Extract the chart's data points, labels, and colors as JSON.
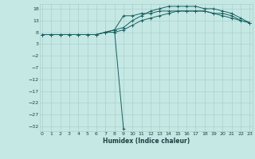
{
  "xlabel": "Humidex (Indice chaleur)",
  "background_color": "#c5e8e5",
  "grid_color": "#aad0cc",
  "line_color": "#1a6060",
  "x_ticks": [
    0,
    1,
    2,
    3,
    4,
    5,
    6,
    7,
    8,
    9,
    10,
    11,
    12,
    13,
    14,
    15,
    16,
    17,
    18,
    19,
    20,
    21,
    22,
    23
  ],
  "y_ticks": [
    -32,
    -27,
    -22,
    -17,
    -12,
    -7,
    -2,
    3,
    8,
    13,
    18
  ],
  "ylim": [
    -34,
    20
  ],
  "xlim": [
    -0.3,
    23.3
  ],
  "series": [
    {
      "x": [
        0,
        1,
        2,
        3,
        4,
        5,
        6,
        7,
        8,
        9,
        10,
        11,
        12,
        13,
        14,
        15,
        16,
        17,
        18,
        19,
        20,
        21,
        22,
        23
      ],
      "y": [
        7,
        7,
        7,
        7,
        7,
        7,
        7,
        8,
        8,
        9,
        11,
        13,
        14,
        15,
        16,
        17,
        17,
        17,
        17,
        16,
        16,
        15,
        13,
        12
      ],
      "marker": "+"
    },
    {
      "x": [
        0,
        1,
        2,
        3,
        4,
        5,
        6,
        7,
        8,
        9,
        10,
        11,
        12,
        13,
        14,
        15,
        16,
        17,
        18,
        19,
        20,
        21,
        22,
        23
      ],
      "y": [
        7,
        7,
        7,
        7,
        7,
        7,
        7,
        8,
        9,
        10,
        13,
        15,
        17,
        18,
        19,
        19,
        19,
        19,
        18,
        18,
        17,
        16,
        14,
        12
      ],
      "marker": "+"
    },
    {
      "x": [
        0,
        1,
        2,
        3,
        4,
        5,
        6,
        7,
        8,
        9,
        10,
        11,
        12,
        13,
        14,
        15,
        16,
        17,
        18,
        19,
        20,
        21,
        22,
        23
      ],
      "y": [
        7,
        7,
        7,
        7,
        7,
        7,
        7,
        8,
        9,
        15,
        15,
        16,
        16,
        17,
        17,
        17,
        17,
        17,
        17,
        16,
        15,
        14,
        13,
        12
      ],
      "marker": "+"
    },
    {
      "x": [
        8,
        9
      ],
      "y": [
        9,
        -33
      ],
      "marker": "+"
    }
  ]
}
